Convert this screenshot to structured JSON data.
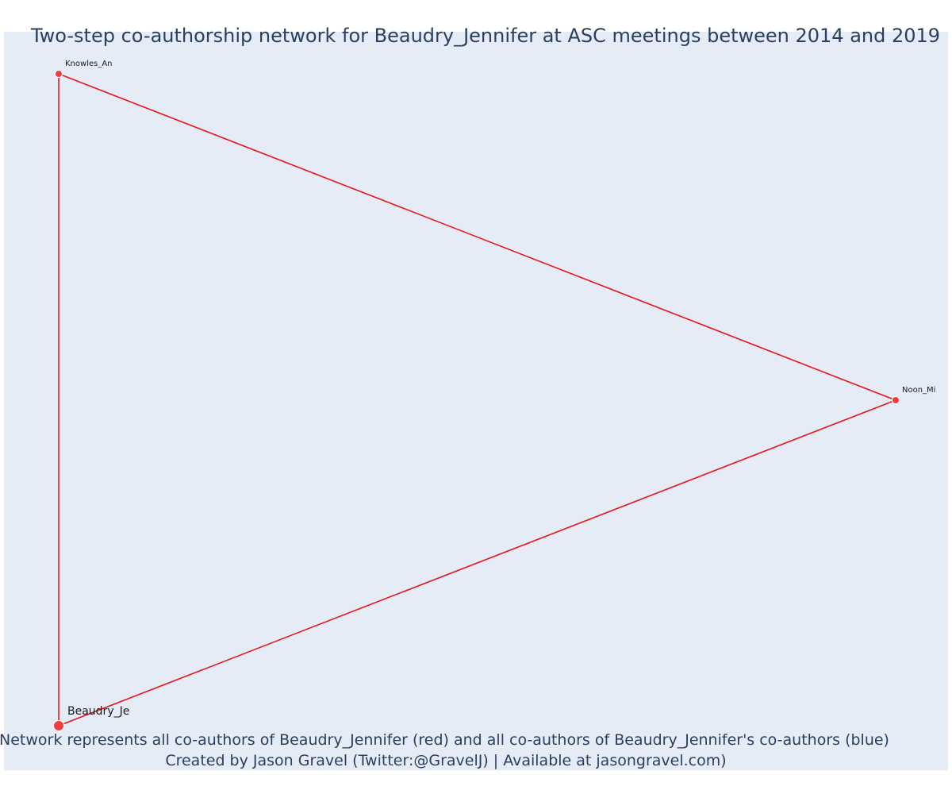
{
  "title": "Two-step co-authorship network for Beaudry_Jennifer at ASC meetings between 2014 and 2019",
  "caption": {
    "line1": "Network represents all co-authors of Beaudry_Jennifer (red) and all co-authors of Beaudry_Jennifer's co-authors (blue)",
    "line2": "Created by Jason Gravel (Twitter:@GravelJ) | Available at jasongravel.com)"
  },
  "colors": {
    "background": "#e5ecf6",
    "edge": "#e8141e",
    "node": "#f03c3c",
    "node_outline": "#ffffff",
    "text": "#2a3f5f"
  },
  "diagram": {
    "nodes": [
      {
        "id": "knowles",
        "label": "Knowles_An",
        "group": "co-author",
        "focal": false
      },
      {
        "id": "noon",
        "label": "Noon_Mi",
        "group": "co-author",
        "focal": false
      },
      {
        "id": "beaudry",
        "label": "Beaudry_Je",
        "group": "focal",
        "focal": true
      }
    ],
    "edges": [
      {
        "source": "knowles",
        "target": "noon"
      },
      {
        "source": "noon",
        "target": "beaudry"
      },
      {
        "source": "knowles",
        "target": "beaudry"
      }
    ]
  }
}
